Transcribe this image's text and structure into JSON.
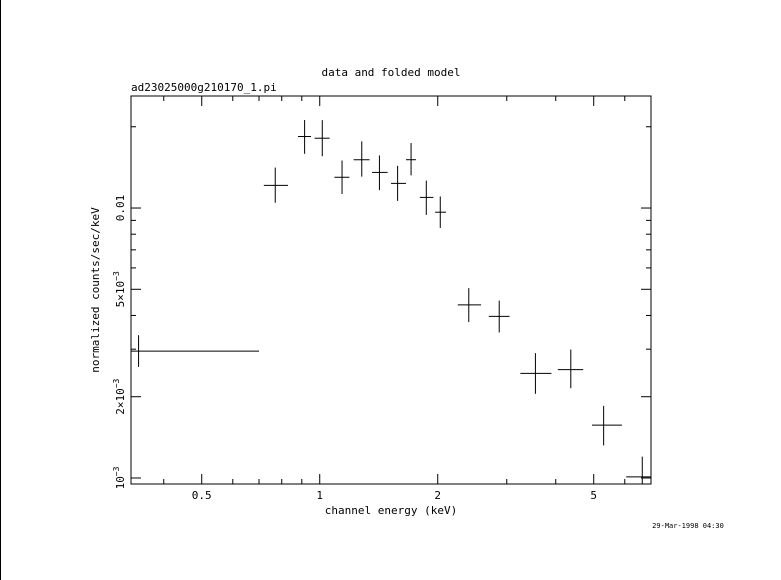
{
  "chart_data": {
    "type": "scatter",
    "title": "data and folded model",
    "subtitle": "ad23025000g210170_1.pi",
    "xlabel": "channel energy (keV)",
    "ylabel": "normalized counts/sec/keV",
    "timestamp": "29-Mar-1998 04:30",
    "x_scale": "log",
    "y_scale": "log",
    "xlim": [
      0.33,
      7.0
    ],
    "ylim": [
      0.00095,
      0.026
    ],
    "x_ticks": [
      {
        "value": 0.5,
        "label": "0.5"
      },
      {
        "value": 1,
        "label": "1"
      },
      {
        "value": 2,
        "label": "2"
      },
      {
        "value": 5,
        "label": "5"
      }
    ],
    "y_ticks": [
      {
        "value": 0.001,
        "base": "10",
        "exp": "−3"
      },
      {
        "value": 0.002,
        "base": "2×10",
        "exp": "−3"
      },
      {
        "value": 0.005,
        "base": "5×10",
        "exp": "−3"
      },
      {
        "value": 0.01,
        "base": "0.01",
        "exp": ""
      }
    ],
    "grid": false,
    "points": [
      {
        "x": 0.345,
        "xlo": 0.33,
        "xhi": 0.7,
        "y": 0.00295,
        "ylo": 0.00258,
        "yhi": 0.00338
      },
      {
        "x": 0.77,
        "xlo": 0.72,
        "xhi": 0.83,
        "y": 0.01213,
        "ylo": 0.01046,
        "yhi": 0.01412
      },
      {
        "x": 0.915,
        "xlo": 0.88,
        "xhi": 0.95,
        "y": 0.0184,
        "ylo": 0.01588,
        "yhi": 0.02118
      },
      {
        "x": 1.015,
        "xlo": 0.97,
        "xhi": 1.06,
        "y": 0.01814,
        "ylo": 0.01555,
        "yhi": 0.02116
      },
      {
        "x": 1.14,
        "xlo": 1.09,
        "xhi": 1.19,
        "y": 0.013,
        "ylo": 0.01127,
        "yhi": 0.015
      },
      {
        "x": 1.28,
        "xlo": 1.22,
        "xhi": 1.34,
        "y": 0.0151,
        "ylo": 0.01307,
        "yhi": 0.01766
      },
      {
        "x": 1.42,
        "xlo": 1.36,
        "xhi": 1.49,
        "y": 0.01355,
        "ylo": 0.01165,
        "yhi": 0.01566
      },
      {
        "x": 1.58,
        "xlo": 1.52,
        "xhi": 1.66,
        "y": 0.01234,
        "ylo": 0.01063,
        "yhi": 0.01433
      },
      {
        "x": 1.71,
        "xlo": 1.66,
        "xhi": 1.76,
        "y": 0.0151,
        "ylo": 0.01321,
        "yhi": 0.01741
      },
      {
        "x": 1.87,
        "xlo": 1.8,
        "xhi": 1.95,
        "y": 0.01095,
        "ylo": 0.00943,
        "yhi": 0.01264
      },
      {
        "x": 2.03,
        "xlo": 1.97,
        "xhi": 2.1,
        "y": 0.00965,
        "ylo": 0.00844,
        "yhi": 0.01104
      },
      {
        "x": 2.4,
        "xlo": 2.25,
        "xhi": 2.58,
        "y": 0.00438,
        "ylo": 0.00378,
        "yhi": 0.00505
      },
      {
        "x": 2.87,
        "xlo": 2.7,
        "xhi": 3.05,
        "y": 0.00397,
        "ylo": 0.00346,
        "yhi": 0.00454
      },
      {
        "x": 3.55,
        "xlo": 3.25,
        "xhi": 3.9,
        "y": 0.00244,
        "ylo": 0.00205,
        "yhi": 0.0029
      },
      {
        "x": 4.37,
        "xlo": 4.05,
        "xhi": 4.7,
        "y": 0.00252,
        "ylo": 0.00215,
        "yhi": 0.00299
      },
      {
        "x": 5.3,
        "xlo": 4.95,
        "xhi": 5.9,
        "y": 0.00157,
        "ylo": 0.00132,
        "yhi": 0.00185
      },
      {
        "x": 6.65,
        "xlo": 6.05,
        "xhi": 7.0,
        "y": 0.00101,
        "ylo": 0.00084,
        "yhi": 0.0012
      }
    ],
    "colors": {
      "axes": "#000000",
      "data": "#000000",
      "background": "#ffffff"
    }
  }
}
